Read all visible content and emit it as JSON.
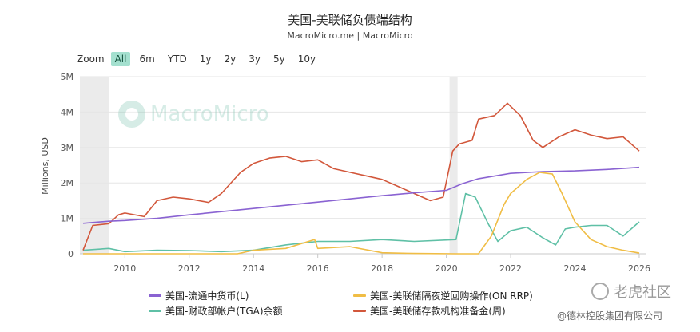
{
  "title": "美国-美联储负债端结构",
  "subtitle": "MacroMicro.me | MacroMicro",
  "zoom": {
    "label": "Zoom",
    "buttons": [
      "All",
      "6m",
      "YTD",
      "1y",
      "2y",
      "3y",
      "5y",
      "10y"
    ],
    "active": "All"
  },
  "logo_text": "MacroMicro",
  "watermark": {
    "brand": "老虎社区",
    "author": "@德林控股集团有限公司"
  },
  "colors": {
    "currency": "#8a63d2",
    "rrp": "#f0bd45",
    "tga": "#5fc0a6",
    "reserves": "#d2573b",
    "recession": "#ebebeb",
    "grid": "#e6e6e6"
  },
  "chart_data": {
    "type": "line",
    "title": "美国-美联储负债端结构",
    "ylabel": "Millions, USD",
    "xlim": [
      2008.6,
      2026.2
    ],
    "ylim": [
      0,
      5000000
    ],
    "yticks": [
      0,
      1000000,
      2000000,
      3000000,
      4000000,
      5000000
    ],
    "ytick_labels": [
      "0",
      "1M",
      "2M",
      "3M",
      "4M",
      "5M"
    ],
    "xticks": [
      2010,
      2012,
      2014,
      2016,
      2018,
      2020,
      2022,
      2024,
      2026
    ],
    "xtick_labels": [
      "2010",
      "2012",
      "2014",
      "2016",
      "2018",
      "2020",
      "2022",
      "2024",
      "2026"
    ],
    "recessions": [
      [
        2008.6,
        2009.5
      ],
      [
        2020.1,
        2020.35
      ]
    ],
    "legend_position": "bottom",
    "series": [
      {
        "name": "美国-流通中货币(L)",
        "key": "currency",
        "x": [
          2008.7,
          2009.5,
          2010,
          2011,
          2012,
          2013,
          2014,
          2015,
          2016,
          2017,
          2018,
          2019,
          2020,
          2020.5,
          2021,
          2022,
          2023,
          2024,
          2025,
          2026
        ],
        "y": [
          860000,
          920000,
          940000,
          1000000,
          1100000,
          1190000,
          1280000,
          1370000,
          1460000,
          1550000,
          1640000,
          1720000,
          1790000,
          1980000,
          2120000,
          2270000,
          2320000,
          2340000,
          2380000,
          2440000
        ]
      },
      {
        "name": "美国-美联储隔夜逆回购操作(ON RRP)",
        "key": "rrp",
        "x": [
          2008.7,
          2013.5,
          2014,
          2015,
          2015.9,
          2016,
          2017,
          2018,
          2019,
          2020.3,
          2021,
          2021.4,
          2021.8,
          2022,
          2022.5,
          2022.9,
          2023.3,
          2023.6,
          2024,
          2024.5,
          2025,
          2025.5,
          2026
        ],
        "y": [
          0,
          0,
          100000,
          150000,
          400000,
          150000,
          200000,
          30000,
          10000,
          0,
          0,
          500000,
          1400000,
          1700000,
          2100000,
          2300000,
          2250000,
          1700000,
          900000,
          400000,
          200000,
          100000,
          20000
        ]
      },
      {
        "name": "美国-财政部帐户(TGA)余额",
        "key": "tga",
        "x": [
          2008.7,
          2009.5,
          2010,
          2011,
          2012,
          2013,
          2014,
          2015,
          2016,
          2017,
          2018,
          2019,
          2020.3,
          2020.6,
          2020.9,
          2021.3,
          2021.6,
          2022,
          2022.5,
          2023,
          2023.4,
          2023.7,
          2024,
          2024.5,
          2025,
          2025.5,
          2026
        ],
        "y": [
          100000,
          150000,
          60000,
          100000,
          90000,
          60000,
          100000,
          250000,
          350000,
          350000,
          400000,
          350000,
          400000,
          1700000,
          1600000,
          850000,
          350000,
          650000,
          750000,
          450000,
          250000,
          700000,
          750000,
          800000,
          800000,
          500000,
          900000
        ]
      },
      {
        "name": "美国-美联储存款机构准备金(周)",
        "key": "reserves",
        "x": [
          2008.7,
          2009,
          2009.5,
          2009.8,
          2010,
          2010.6,
          2011,
          2011.5,
          2012,
          2012.6,
          2013,
          2013.6,
          2014,
          2014.5,
          2015,
          2015.5,
          2016,
          2016.5,
          2017,
          2017.5,
          2018,
          2018.5,
          2019,
          2019.5,
          2019.9,
          2020.2,
          2020.4,
          2020.8,
          2021,
          2021.5,
          2021.9,
          2022.3,
          2022.7,
          2023,
          2023.5,
          2024,
          2024.5,
          2025,
          2025.5,
          2026
        ],
        "y": [
          100000,
          800000,
          850000,
          1100000,
          1150000,
          1050000,
          1500000,
          1600000,
          1550000,
          1450000,
          1700000,
          2300000,
          2550000,
          2700000,
          2750000,
          2600000,
          2650000,
          2400000,
          2300000,
          2200000,
          2100000,
          1900000,
          1700000,
          1500000,
          1600000,
          2900000,
          3100000,
          3200000,
          3800000,
          3900000,
          4250000,
          3900000,
          3200000,
          3000000,
          3300000,
          3500000,
          3350000,
          3250000,
          3300000,
          2900000
        ]
      }
    ]
  }
}
